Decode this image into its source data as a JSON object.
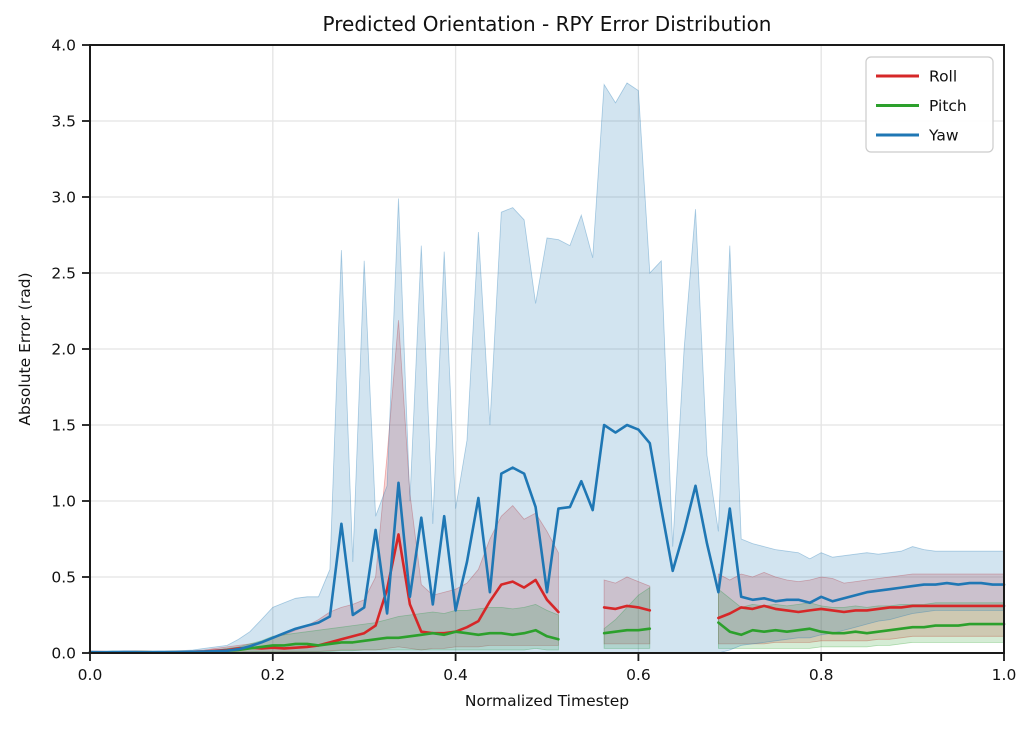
{
  "figure": {
    "background": "#ffffff"
  },
  "style": {
    "axis_color": "#1a1a1a",
    "grid_color": "#e4e4e4",
    "text_color": "#111111",
    "legend_border": "#cccccc",
    "line_width": 2.6,
    "spine_width": 2
  },
  "chart_data": {
    "type": "line",
    "title": "Predicted Orientation - RPY Error Distribution",
    "xlabel": "Normalized Timestep",
    "ylabel": "Absolute Error (rad)",
    "xlim": [
      0.0,
      1.0
    ],
    "ylim": [
      0.0,
      4.0
    ],
    "xtick_labels": [
      "0.0",
      "0.2",
      "0.4",
      "0.6",
      "0.8",
      "1.0"
    ],
    "ytick_labels": [
      "0.0",
      "0.5",
      "1.0",
      "1.5",
      "2.0",
      "2.5",
      "3.0",
      "3.5",
      "4.0"
    ],
    "grid": true,
    "band_alpha": 0.2,
    "legend": {
      "position": "upper right",
      "entries": [
        "Roll",
        "Pitch",
        "Yaw"
      ]
    },
    "x": [
      0.0,
      0.0125,
      0.025,
      0.0375,
      0.05,
      0.0625,
      0.075,
      0.0875,
      0.1,
      0.1125,
      0.125,
      0.1375,
      0.15,
      0.1625,
      0.175,
      0.1875,
      0.2,
      0.2125,
      0.225,
      0.2375,
      0.25,
      0.2625,
      0.275,
      0.2875,
      0.3,
      0.3125,
      0.325,
      0.3375,
      0.35,
      0.3625,
      0.375,
      0.3875,
      0.4,
      0.4125,
      0.425,
      0.4375,
      0.45,
      0.4625,
      0.475,
      0.4875,
      0.5,
      0.5125,
      0.525,
      0.5375,
      0.55,
      0.5625,
      0.575,
      0.5875,
      0.6,
      0.6125,
      0.625,
      0.6375,
      0.65,
      0.6625,
      0.675,
      0.6875,
      0.7,
      0.7125,
      0.725,
      0.7375,
      0.75,
      0.7625,
      0.775,
      0.7875,
      0.8,
      0.8125,
      0.825,
      0.8375,
      0.85,
      0.8625,
      0.875,
      0.8875,
      0.9,
      0.9125,
      0.925,
      0.9375,
      0.95,
      0.9625,
      0.975,
      0.9875,
      1.0
    ],
    "series": [
      {
        "name": "Roll",
        "color": "#d62728",
        "mean": [
          0.005,
          0.005,
          0.004,
          0.005,
          0.006,
          0.005,
          0.004,
          0.005,
          0.006,
          0.008,
          0.01,
          0.015,
          0.02,
          0.03,
          0.035,
          0.03,
          0.035,
          0.03,
          0.035,
          0.04,
          0.05,
          0.07,
          0.09,
          0.11,
          0.13,
          0.18,
          0.42,
          0.78,
          0.32,
          0.14,
          0.13,
          0.13,
          0.14,
          0.17,
          0.21,
          0.34,
          0.45,
          0.47,
          0.43,
          0.48,
          0.35,
          0.27,
          null,
          null,
          null,
          0.3,
          0.29,
          0.31,
          0.3,
          0.28,
          null,
          null,
          null,
          null,
          null,
          0.23,
          0.26,
          0.3,
          0.29,
          0.31,
          0.29,
          0.28,
          0.27,
          0.28,
          0.29,
          0.28,
          0.27,
          0.28,
          0.28,
          0.29,
          0.3,
          0.3,
          0.31,
          0.31,
          0.31,
          0.31,
          0.31,
          0.31,
          0.31,
          0.31,
          0.31
        ],
        "upper": [
          0.01,
          0.01,
          0.01,
          0.01,
          0.01,
          0.01,
          0.01,
          0.01,
          0.012,
          0.015,
          0.02,
          0.03,
          0.04,
          0.05,
          0.06,
          0.07,
          0.1,
          0.12,
          0.15,
          0.18,
          0.22,
          0.27,
          0.3,
          0.32,
          0.35,
          0.5,
          1.3,
          2.19,
          1.05,
          0.45,
          0.38,
          0.4,
          0.42,
          0.46,
          0.55,
          0.75,
          0.9,
          0.97,
          0.88,
          0.92,
          0.8,
          0.66,
          null,
          null,
          null,
          0.48,
          0.46,
          0.5,
          0.47,
          0.44,
          null,
          null,
          null,
          null,
          null,
          0.52,
          0.48,
          0.52,
          0.5,
          0.53,
          0.5,
          0.48,
          0.47,
          0.48,
          0.5,
          0.49,
          0.46,
          0.47,
          0.48,
          0.49,
          0.5,
          0.51,
          0.52,
          0.52,
          0.52,
          0.52,
          0.52,
          0.52,
          0.52,
          0.52,
          0.52
        ],
        "lower": [
          0.002,
          0.002,
          0.002,
          0.002,
          0.002,
          0.002,
          0.002,
          0.002,
          0.002,
          0.003,
          0.004,
          0.005,
          0.006,
          0.008,
          0.01,
          0.01,
          0.01,
          0.01,
          0.01,
          0.01,
          0.01,
          0.015,
          0.02,
          0.02,
          0.02,
          0.02,
          0.03,
          0.04,
          0.03,
          0.02,
          0.03,
          0.03,
          0.04,
          0.04,
          0.04,
          0.05,
          0.05,
          0.05,
          0.05,
          0.05,
          0.05,
          0.05,
          null,
          null,
          null,
          0.06,
          0.06,
          0.06,
          0.06,
          0.06,
          null,
          null,
          null,
          null,
          null,
          0.06,
          0.06,
          0.06,
          0.06,
          0.06,
          0.07,
          0.07,
          0.07,
          0.07,
          0.08,
          0.08,
          0.08,
          0.08,
          0.08,
          0.09,
          0.09,
          0.1,
          0.11,
          0.11,
          0.11,
          0.11,
          0.11,
          0.11,
          0.11,
          0.11,
          0.11
        ]
      },
      {
        "name": "Pitch",
        "color": "#2ca02c",
        "mean": [
          0.004,
          0.004,
          0.005,
          0.004,
          0.005,
          0.005,
          0.004,
          0.005,
          0.005,
          0.006,
          0.008,
          0.01,
          0.015,
          0.02,
          0.03,
          0.04,
          0.05,
          0.05,
          0.06,
          0.06,
          0.05,
          0.06,
          0.07,
          0.07,
          0.08,
          0.09,
          0.1,
          0.1,
          0.11,
          0.12,
          0.13,
          0.12,
          0.14,
          0.13,
          0.12,
          0.13,
          0.13,
          0.12,
          0.13,
          0.15,
          0.11,
          0.09,
          null,
          null,
          null,
          0.13,
          0.14,
          0.15,
          0.15,
          0.16,
          null,
          null,
          null,
          null,
          null,
          0.2,
          0.14,
          0.12,
          0.15,
          0.14,
          0.15,
          0.14,
          0.15,
          0.16,
          0.14,
          0.13,
          0.13,
          0.14,
          0.13,
          0.14,
          0.15,
          0.16,
          0.17,
          0.17,
          0.18,
          0.18,
          0.18,
          0.19,
          0.19,
          0.19,
          0.19
        ],
        "upper": [
          0.008,
          0.008,
          0.008,
          0.008,
          0.008,
          0.008,
          0.008,
          0.008,
          0.01,
          0.012,
          0.015,
          0.02,
          0.03,
          0.04,
          0.06,
          0.08,
          0.11,
          0.12,
          0.13,
          0.14,
          0.15,
          0.16,
          0.17,
          0.18,
          0.19,
          0.2,
          0.22,
          0.24,
          0.25,
          0.26,
          0.27,
          0.26,
          0.28,
          0.28,
          0.29,
          0.3,
          0.3,
          0.29,
          0.3,
          0.32,
          0.28,
          0.25,
          null,
          null,
          null,
          0.16,
          0.22,
          0.3,
          0.38,
          0.43,
          null,
          null,
          null,
          null,
          null,
          0.42,
          0.36,
          0.3,
          0.32,
          0.31,
          0.32,
          0.31,
          0.32,
          0.33,
          0.31,
          0.3,
          0.3,
          0.31,
          0.3,
          0.31,
          0.31,
          0.32,
          0.32,
          0.32,
          0.33,
          0.33,
          0.33,
          0.33,
          0.33,
          0.33,
          0.33
        ],
        "lower": [
          0.002,
          0.002,
          0.002,
          0.002,
          0.002,
          0.002,
          0.002,
          0.002,
          0.002,
          0.002,
          0.002,
          0.002,
          0.004,
          0.005,
          0.008,
          0.01,
          0.01,
          0.01,
          0.01,
          0.01,
          0.01,
          0.01,
          0.015,
          0.015,
          0.02,
          0.02,
          0.02,
          0.02,
          0.02,
          0.02,
          0.02,
          0.02,
          0.02,
          0.02,
          0.02,
          0.02,
          0.02,
          0.02,
          0.02,
          0.03,
          0.02,
          0.02,
          null,
          null,
          null,
          0.03,
          0.03,
          0.03,
          0.03,
          0.03,
          null,
          null,
          null,
          null,
          null,
          0.03,
          0.03,
          0.03,
          0.03,
          0.03,
          0.03,
          0.03,
          0.03,
          0.03,
          0.04,
          0.04,
          0.04,
          0.04,
          0.04,
          0.05,
          0.05,
          0.06,
          0.07,
          0.07,
          0.07,
          0.07,
          0.07,
          0.07,
          0.07,
          0.07,
          0.07
        ]
      },
      {
        "name": "Yaw",
        "color": "#1f77b4",
        "mean": [
          0.006,
          0.005,
          0.006,
          0.007,
          0.006,
          0.005,
          0.006,
          0.006,
          0.007,
          0.008,
          0.01,
          0.012,
          0.015,
          0.025,
          0.045,
          0.07,
          0.1,
          0.13,
          0.16,
          0.18,
          0.2,
          0.24,
          0.85,
          0.25,
          0.3,
          0.81,
          0.26,
          1.12,
          0.37,
          0.89,
          0.32,
          0.9,
          0.28,
          0.6,
          1.02,
          0.4,
          1.18,
          1.22,
          1.18,
          0.96,
          0.4,
          0.95,
          0.96,
          1.13,
          0.94,
          1.5,
          1.45,
          1.5,
          1.47,
          1.38,
          0.95,
          0.54,
          0.8,
          1.1,
          0.72,
          0.4,
          0.95,
          0.37,
          0.35,
          0.36,
          0.34,
          0.35,
          0.35,
          0.33,
          0.37,
          0.34,
          0.36,
          0.38,
          0.4,
          0.41,
          0.42,
          0.43,
          0.44,
          0.45,
          0.45,
          0.46,
          0.45,
          0.46,
          0.46,
          0.45,
          0.45
        ],
        "upper": [
          0.01,
          0.01,
          0.01,
          0.01,
          0.012,
          0.012,
          0.012,
          0.012,
          0.015,
          0.02,
          0.03,
          0.04,
          0.05,
          0.09,
          0.14,
          0.22,
          0.3,
          0.33,
          0.36,
          0.37,
          0.37,
          0.55,
          2.65,
          0.6,
          2.58,
          0.9,
          1.1,
          2.99,
          1.0,
          2.68,
          0.85,
          2.64,
          0.95,
          1.4,
          2.77,
          1.5,
          2.9,
          2.93,
          2.85,
          2.3,
          2.73,
          2.72,
          2.68,
          2.88,
          2.6,
          3.74,
          3.62,
          3.75,
          3.7,
          2.5,
          2.58,
          0.7,
          2.0,
          2.92,
          1.3,
          0.8,
          2.68,
          0.75,
          0.72,
          0.7,
          0.68,
          0.67,
          0.66,
          0.62,
          0.66,
          0.63,
          0.64,
          0.65,
          0.66,
          0.65,
          0.66,
          0.67,
          0.7,
          0.68,
          0.67,
          0.67,
          0.67,
          0.67,
          0.67,
          0.67,
          0.67
        ],
        "lower": [
          0,
          0,
          0,
          0,
          0,
          0,
          0,
          0,
          0,
          0,
          0,
          0,
          0,
          0,
          0,
          0,
          0,
          0,
          0,
          0,
          0,
          0,
          0,
          0,
          0,
          0,
          0,
          0,
          0,
          0,
          0,
          0,
          0,
          0,
          0,
          0,
          0,
          0,
          0,
          0,
          0,
          0,
          0,
          0,
          0,
          0,
          0,
          0,
          0,
          0,
          0,
          0,
          0,
          0,
          0,
          0,
          0.02,
          0.05,
          0.06,
          0.07,
          0.08,
          0.09,
          0.1,
          0.1,
          0.12,
          0.13,
          0.15,
          0.17,
          0.19,
          0.21,
          0.22,
          0.24,
          0.26,
          0.27,
          0.28,
          0.28,
          0.28,
          0.28,
          0.28,
          0.28,
          0.28
        ]
      }
    ]
  }
}
